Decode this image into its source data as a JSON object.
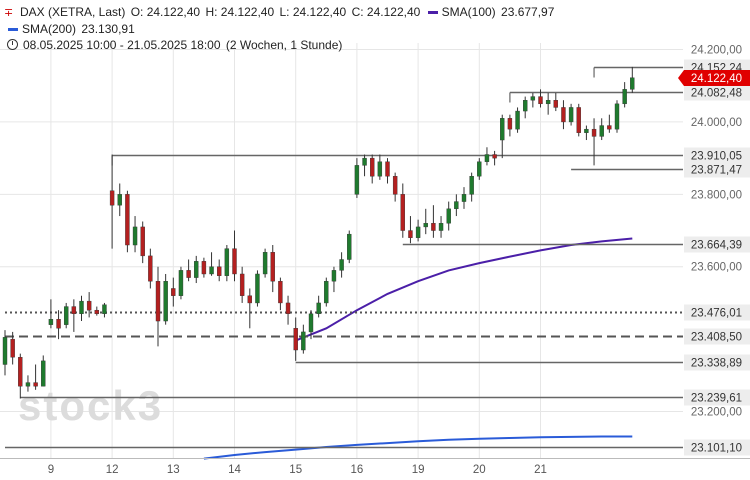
{
  "legend": {
    "instrument": "DAX (XETRA, Last)",
    "open": "O: 24.122,40",
    "high": "H: 24.122,40",
    "low": "L: 24.122,40",
    "close": "C: 24.122,40",
    "sma100_label": "SMA(100)",
    "sma100_value": "23.677,97",
    "sma200_label": "SMA(200)",
    "sma200_value": "23.130,91",
    "range": "08.05.2025 10:00 - 21.05.2025 18:00",
    "period": "(2 Wochen, 1 Stunde)"
  },
  "watermark": "stock3",
  "colors": {
    "up": "#1f7a2e",
    "down": "#b42020",
    "sma100": "#4b1fa8",
    "sma200": "#2a5bd8",
    "level": "#666666",
    "price_tag": "#e00000"
  },
  "chart_data": {
    "type": "candlestick",
    "timeframe": "1 Stunde",
    "x_ticks": [
      {
        "label": "9",
        "index": 6
      },
      {
        "label": "12",
        "index": 14
      },
      {
        "label": "13",
        "index": 22
      },
      {
        "label": "14",
        "index": 30
      },
      {
        "label": "15",
        "index": 38
      },
      {
        "label": "16",
        "index": 46
      },
      {
        "label": "19",
        "index": 54
      },
      {
        "label": "20",
        "index": 62
      },
      {
        "label": "21",
        "index": 70
      }
    ],
    "y_ticks": [
      24200,
      24000,
      23800,
      23600,
      23200
    ],
    "y_tick_labels": [
      "24.200,00",
      "24.000,00",
      "23.800,00",
      "23.600,00",
      "23.200,00"
    ],
    "ylim": [
      23080,
      24218
    ],
    "candles": [
      {
        "o": 23330,
        "h": 23425,
        "l": 23300,
        "c": 23405
      },
      {
        "o": 23400,
        "h": 23420,
        "l": 23330,
        "c": 23350
      },
      {
        "o": 23350,
        "h": 23360,
        "l": 23236,
        "c": 23270
      },
      {
        "o": 23270,
        "h": 23300,
        "l": 23255,
        "c": 23280
      },
      {
        "o": 23280,
        "h": 23330,
        "l": 23260,
        "c": 23270
      },
      {
        "o": 23270,
        "h": 23355,
        "l": 23270,
        "c": 23340
      },
      {
        "o": 23440,
        "h": 23510,
        "l": 23430,
        "c": 23455
      },
      {
        "o": 23455,
        "h": 23480,
        "l": 23400,
        "c": 23430
      },
      {
        "o": 23440,
        "h": 23500,
        "l": 23430,
        "c": 23490
      },
      {
        "o": 23490,
        "h": 23510,
        "l": 23420,
        "c": 23470
      },
      {
        "o": 23470,
        "h": 23520,
        "l": 23450,
        "c": 23505
      },
      {
        "o": 23505,
        "h": 23530,
        "l": 23460,
        "c": 23480
      },
      {
        "o": 23480,
        "h": 23490,
        "l": 23465,
        "c": 23470
      },
      {
        "o": 23470,
        "h": 23500,
        "l": 23460,
        "c": 23495
      },
      {
        "o": 23810,
        "h": 23910,
        "l": 23650,
        "c": 23770
      },
      {
        "o": 23770,
        "h": 23830,
        "l": 23740,
        "c": 23800
      },
      {
        "o": 23800,
        "h": 23810,
        "l": 23640,
        "c": 23660
      },
      {
        "o": 23660,
        "h": 23740,
        "l": 23640,
        "c": 23710
      },
      {
        "o": 23710,
        "h": 23725,
        "l": 23610,
        "c": 23630
      },
      {
        "o": 23630,
        "h": 23650,
        "l": 23540,
        "c": 23560
      },
      {
        "o": 23560,
        "h": 23600,
        "l": 23380,
        "c": 23450
      },
      {
        "o": 23450,
        "h": 23580,
        "l": 23440,
        "c": 23560
      },
      {
        "o": 23540,
        "h": 23570,
        "l": 23490,
        "c": 23520
      },
      {
        "o": 23520,
        "h": 23600,
        "l": 23510,
        "c": 23590
      },
      {
        "o": 23590,
        "h": 23620,
        "l": 23560,
        "c": 23570
      },
      {
        "o": 23570,
        "h": 23630,
        "l": 23555,
        "c": 23615
      },
      {
        "o": 23615,
        "h": 23625,
        "l": 23570,
        "c": 23580
      },
      {
        "o": 23580,
        "h": 23640,
        "l": 23575,
        "c": 23600
      },
      {
        "o": 23600,
        "h": 23620,
        "l": 23560,
        "c": 23575
      },
      {
        "o": 23575,
        "h": 23660,
        "l": 23560,
        "c": 23650
      },
      {
        "o": 23650,
        "h": 23700,
        "l": 23560,
        "c": 23580
      },
      {
        "o": 23580,
        "h": 23600,
        "l": 23500,
        "c": 23520
      },
      {
        "o": 23520,
        "h": 23540,
        "l": 23430,
        "c": 23500
      },
      {
        "o": 23500,
        "h": 23590,
        "l": 23490,
        "c": 23580
      },
      {
        "o": 23580,
        "h": 23650,
        "l": 23570,
        "c": 23640
      },
      {
        "o": 23640,
        "h": 23660,
        "l": 23530,
        "c": 23560
      },
      {
        "o": 23560,
        "h": 23570,
        "l": 23480,
        "c": 23500
      },
      {
        "o": 23500,
        "h": 23520,
        "l": 23440,
        "c": 23470
      },
      {
        "o": 23430,
        "h": 23460,
        "l": 23340,
        "c": 23370
      },
      {
        "o": 23370,
        "h": 23440,
        "l": 23360,
        "c": 23420
      },
      {
        "o": 23420,
        "h": 23480,
        "l": 23400,
        "c": 23470
      },
      {
        "o": 23470,
        "h": 23520,
        "l": 23460,
        "c": 23500
      },
      {
        "o": 23500,
        "h": 23570,
        "l": 23490,
        "c": 23560
      },
      {
        "o": 23560,
        "h": 23600,
        "l": 23530,
        "c": 23590
      },
      {
        "o": 23590,
        "h": 23640,
        "l": 23570,
        "c": 23620
      },
      {
        "o": 23620,
        "h": 23700,
        "l": 23610,
        "c": 23690
      },
      {
        "o": 23800,
        "h": 23900,
        "l": 23790,
        "c": 23880
      },
      {
        "o": 23880,
        "h": 23910,
        "l": 23850,
        "c": 23900
      },
      {
        "o": 23900,
        "h": 23910,
        "l": 23830,
        "c": 23850
      },
      {
        "o": 23850,
        "h": 23910,
        "l": 23840,
        "c": 23890
      },
      {
        "o": 23890,
        "h": 23900,
        "l": 23830,
        "c": 23850
      },
      {
        "o": 23850,
        "h": 23860,
        "l": 23780,
        "c": 23800
      },
      {
        "o": 23800,
        "h": 23830,
        "l": 23680,
        "c": 23700
      },
      {
        "o": 23700,
        "h": 23740,
        "l": 23665,
        "c": 23680
      },
      {
        "o": 23680,
        "h": 23730,
        "l": 23670,
        "c": 23710
      },
      {
        "o": 23710,
        "h": 23760,
        "l": 23690,
        "c": 23720
      },
      {
        "o": 23720,
        "h": 23770,
        "l": 23680,
        "c": 23700
      },
      {
        "o": 23700,
        "h": 23740,
        "l": 23680,
        "c": 23720
      },
      {
        "o": 23720,
        "h": 23780,
        "l": 23700,
        "c": 23760
      },
      {
        "o": 23760,
        "h": 23800,
        "l": 23740,
        "c": 23780
      },
      {
        "o": 23780,
        "h": 23820,
        "l": 23760,
        "c": 23800
      },
      {
        "o": 23800,
        "h": 23860,
        "l": 23780,
        "c": 23850
      },
      {
        "o": 23850,
        "h": 23900,
        "l": 23840,
        "c": 23890
      },
      {
        "o": 23890,
        "h": 23930,
        "l": 23880,
        "c": 23910
      },
      {
        "o": 23910,
        "h": 23920,
        "l": 23880,
        "c": 23900
      },
      {
        "o": 23950,
        "h": 24020,
        "l": 23900,
        "c": 24010
      },
      {
        "o": 24010,
        "h": 24020,
        "l": 23960,
        "c": 23980
      },
      {
        "o": 23980,
        "h": 24040,
        "l": 23970,
        "c": 24030
      },
      {
        "o": 24030,
        "h": 24070,
        "l": 24010,
        "c": 24060
      },
      {
        "o": 24060,
        "h": 24080,
        "l": 24040,
        "c": 24070
      },
      {
        "o": 24070,
        "h": 24090,
        "l": 24040,
        "c": 24050
      },
      {
        "o": 24050,
        "h": 24080,
        "l": 24020,
        "c": 24060
      },
      {
        "o": 24060,
        "h": 24080,
        "l": 24030,
        "c": 24040
      },
      {
        "o": 24040,
        "h": 24060,
        "l": 23980,
        "c": 24000
      },
      {
        "o": 24000,
        "h": 24050,
        "l": 23990,
        "c": 24040
      },
      {
        "o": 24040,
        "h": 24050,
        "l": 23960,
        "c": 23970
      },
      {
        "o": 23970,
        "h": 23990,
        "l": 23950,
        "c": 23980
      },
      {
        "o": 23980,
        "h": 24010,
        "l": 23880,
        "c": 23960
      },
      {
        "o": 23960,
        "h": 24010,
        "l": 23950,
        "c": 23990
      },
      {
        "o": 23990,
        "h": 24020,
        "l": 23970,
        "c": 23980
      },
      {
        "o": 23980,
        "h": 24060,
        "l": 23970,
        "c": 24050
      },
      {
        "o": 24050,
        "h": 24110,
        "l": 24040,
        "c": 24090
      },
      {
        "o": 24090,
        "h": 24152,
        "l": 24080,
        "c": 24122
      }
    ],
    "sma100": [
      [
        38,
        23396
      ],
      [
        42,
        23430
      ],
      [
        46,
        23480
      ],
      [
        50,
        23525
      ],
      [
        54,
        23560
      ],
      [
        58,
        23590
      ],
      [
        62,
        23610
      ],
      [
        66,
        23628
      ],
      [
        70,
        23645
      ],
      [
        74,
        23660
      ],
      [
        78,
        23670
      ],
      [
        82,
        23678
      ]
    ],
    "sma200": [
      [
        26,
        23070
      ],
      [
        30,
        23080
      ],
      [
        34,
        23088
      ],
      [
        38,
        23095
      ],
      [
        42,
        23102
      ],
      [
        46,
        23108
      ],
      [
        50,
        23113
      ],
      [
        54,
        23118
      ],
      [
        58,
        23122
      ],
      [
        62,
        23125
      ],
      [
        66,
        23127
      ],
      [
        70,
        23129
      ],
      [
        74,
        23130
      ],
      [
        78,
        23131
      ],
      [
        82,
        23131
      ]
    ],
    "levels": [
      {
        "value": 24152,
        "label": "24.152,24",
        "start": 77
      },
      {
        "value": 24082,
        "label": "24.082,48",
        "start": 66
      },
      {
        "value": 23910,
        "label": "23.910,05",
        "start": 14
      },
      {
        "value": 23871,
        "label": "23.871,47",
        "start": 74
      },
      {
        "value": 23664,
        "label": "23.664,39",
        "start": 52
      },
      {
        "value": 23476,
        "label": "23.476,01",
        "start": 0,
        "style": "dotted"
      },
      {
        "value": 23408,
        "label": "23.408,50",
        "start": 0,
        "style": "dashed"
      },
      {
        "value": 23338,
        "label": "23.338,89",
        "start": 38
      },
      {
        "value": 23239,
        "label": "23.239,61",
        "start": 2
      },
      {
        "value": 23101,
        "label": "23.101,10",
        "start": 0
      }
    ],
    "last_price": {
      "value": 24122,
      "label": "24.122,40"
    }
  }
}
